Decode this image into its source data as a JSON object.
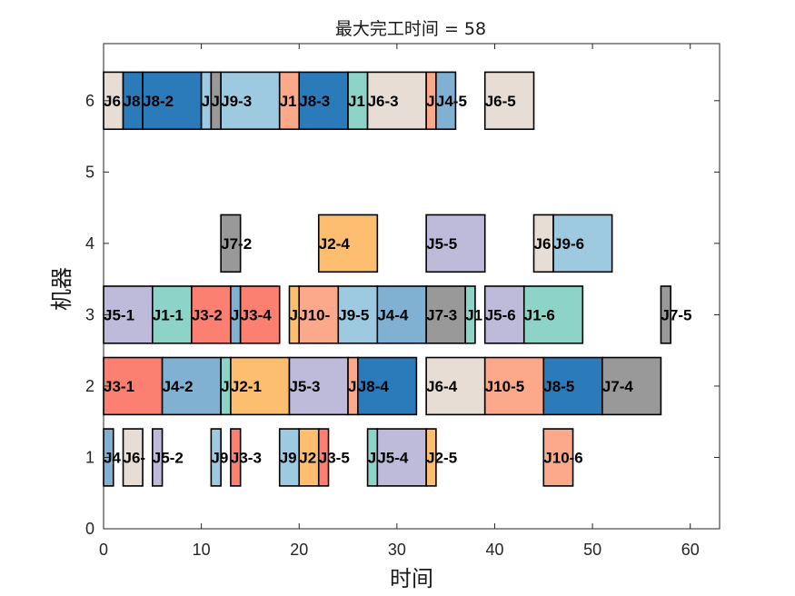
{
  "chart_data": {
    "type": "gantt",
    "title": "最大完工时间 = 58",
    "xlabel": "时间",
    "ylabel": "机器",
    "xlim": [
      0,
      63
    ],
    "ylim": [
      0,
      6.8
    ],
    "xticks": [
      0,
      10,
      20,
      30,
      40,
      50,
      60
    ],
    "yticks": [
      0,
      1,
      2,
      3,
      4,
      5,
      6
    ],
    "job_colors": {
      "J1": "#8dd3c7",
      "J2": "#fdbf6f",
      "J3": "#fb8072",
      "J4": "#80b1d3",
      "J5": "#bebada",
      "J6": "#e8ddd5",
      "J7": "#999999",
      "J8": "#2b7bba",
      "J9": "#9ecae1",
      "J10": "#fca98b"
    },
    "tasks": [
      {
        "machine": 1,
        "job": "J4",
        "label": "J4",
        "start": 0,
        "end": 1
      },
      {
        "machine": 1,
        "job": "J6",
        "label": "J6-",
        "start": 2,
        "end": 4
      },
      {
        "machine": 1,
        "job": "J5",
        "label": "J5-2",
        "start": 5,
        "end": 6
      },
      {
        "machine": 1,
        "job": "J9",
        "label": "J9",
        "start": 11,
        "end": 12
      },
      {
        "machine": 1,
        "job": "J3",
        "label": "J3-3",
        "start": 13,
        "end": 14
      },
      {
        "machine": 1,
        "job": "J9",
        "label": "J9",
        "start": 18,
        "end": 20
      },
      {
        "machine": 1,
        "job": "J2",
        "label": "J2",
        "start": 20,
        "end": 22
      },
      {
        "machine": 1,
        "job": "J3",
        "label": "J3-5",
        "start": 22,
        "end": 23
      },
      {
        "machine": 1,
        "job": "J1",
        "label": "J",
        "start": 27,
        "end": 28
      },
      {
        "machine": 1,
        "job": "J5",
        "label": "J5-4",
        "start": 28,
        "end": 33
      },
      {
        "machine": 1,
        "job": "J2",
        "label": "J2-5",
        "start": 33,
        "end": 34
      },
      {
        "machine": 1,
        "job": "J10",
        "label": "J10-6",
        "start": 45,
        "end": 48
      },
      {
        "machine": 2,
        "job": "J3",
        "label": "J3-1",
        "start": 0,
        "end": 6
      },
      {
        "machine": 2,
        "job": "J4",
        "label": "J4-2",
        "start": 6,
        "end": 12
      },
      {
        "machine": 2,
        "job": "J1",
        "label": "J",
        "start": 12,
        "end": 13
      },
      {
        "machine": 2,
        "job": "J2",
        "label": "J2-1",
        "start": 13,
        "end": 19
      },
      {
        "machine": 2,
        "job": "J5",
        "label": "J5-3",
        "start": 19,
        "end": 25
      },
      {
        "machine": 2,
        "job": "J10",
        "label": "J",
        "start": 25,
        "end": 26
      },
      {
        "machine": 2,
        "job": "J8",
        "label": "J8-4",
        "start": 26,
        "end": 32
      },
      {
        "machine": 2,
        "job": "J6",
        "label": "J6-4",
        "start": 33,
        "end": 39
      },
      {
        "machine": 2,
        "job": "J10",
        "label": "J10-5",
        "start": 39,
        "end": 45
      },
      {
        "machine": 2,
        "job": "J8",
        "label": "J8-5",
        "start": 45,
        "end": 51
      },
      {
        "machine": 2,
        "job": "J7",
        "label": "J7-4",
        "start": 51,
        "end": 57
      },
      {
        "machine": 3,
        "job": "J5",
        "label": "J5-1",
        "start": 0,
        "end": 5
      },
      {
        "machine": 3,
        "job": "J1",
        "label": "J1-1",
        "start": 5,
        "end": 9
      },
      {
        "machine": 3,
        "job": "J3",
        "label": "J3-2",
        "start": 9,
        "end": 13
      },
      {
        "machine": 3,
        "job": "J4",
        "label": "J",
        "start": 13,
        "end": 14
      },
      {
        "machine": 3,
        "job": "J3",
        "label": "J3-4",
        "start": 14,
        "end": 18
      },
      {
        "machine": 3,
        "job": "J2",
        "label": "J",
        "start": 19,
        "end": 20
      },
      {
        "machine": 3,
        "job": "J10",
        "label": "J10-",
        "start": 20,
        "end": 24
      },
      {
        "machine": 3,
        "job": "J9",
        "label": "J9-5",
        "start": 24,
        "end": 28
      },
      {
        "machine": 3,
        "job": "J4",
        "label": "J4-4",
        "start": 28,
        "end": 33
      },
      {
        "machine": 3,
        "job": "J7",
        "label": "J7-3",
        "start": 33,
        "end": 37
      },
      {
        "machine": 3,
        "job": "J1",
        "label": "J1",
        "start": 37,
        "end": 38
      },
      {
        "machine": 3,
        "job": "J5",
        "label": "J5-6",
        "start": 39,
        "end": 43
      },
      {
        "machine": 3,
        "job": "J1",
        "label": "J1-6",
        "start": 43,
        "end": 49
      },
      {
        "machine": 3,
        "job": "J7",
        "label": "J7-5",
        "start": 57,
        "end": 58
      },
      {
        "machine": 4,
        "job": "J7",
        "label": "J7-2",
        "start": 12,
        "end": 14
      },
      {
        "machine": 4,
        "job": "J2",
        "label": "J2-4",
        "start": 22,
        "end": 28
      },
      {
        "machine": 4,
        "job": "J5",
        "label": "J5-5",
        "start": 33,
        "end": 39
      },
      {
        "machine": 4,
        "job": "J6",
        "label": "J6",
        "start": 44,
        "end": 46
      },
      {
        "machine": 4,
        "job": "J9",
        "label": "J9-6",
        "start": 46,
        "end": 52
      },
      {
        "machine": 6,
        "job": "J6",
        "label": "J6",
        "start": 0,
        "end": 2
      },
      {
        "machine": 6,
        "job": "J8",
        "label": "J8",
        "start": 2,
        "end": 4
      },
      {
        "machine": 6,
        "job": "J8",
        "label": "J8-2",
        "start": 4,
        "end": 10
      },
      {
        "machine": 6,
        "job": "J9",
        "label": "J",
        "start": 10,
        "end": 11
      },
      {
        "machine": 6,
        "job": "J7",
        "label": "J",
        "start": 11,
        "end": 12
      },
      {
        "machine": 6,
        "job": "J9",
        "label": "J9-3",
        "start": 12,
        "end": 18
      },
      {
        "machine": 6,
        "job": "J10",
        "label": "J1",
        "start": 18,
        "end": 20
      },
      {
        "machine": 6,
        "job": "J8",
        "label": "J8-3",
        "start": 20,
        "end": 25
      },
      {
        "machine": 6,
        "job": "J1",
        "label": "J1",
        "start": 25,
        "end": 27
      },
      {
        "machine": 6,
        "job": "J6",
        "label": "J6-3",
        "start": 27,
        "end": 33
      },
      {
        "machine": 6,
        "job": "J10",
        "label": "J",
        "start": 33,
        "end": 34
      },
      {
        "machine": 6,
        "job": "J4",
        "label": "J4-5",
        "start": 34,
        "end": 36
      },
      {
        "machine": 6,
        "job": "J6",
        "label": "J6-5",
        "start": 39,
        "end": 44
      }
    ]
  }
}
